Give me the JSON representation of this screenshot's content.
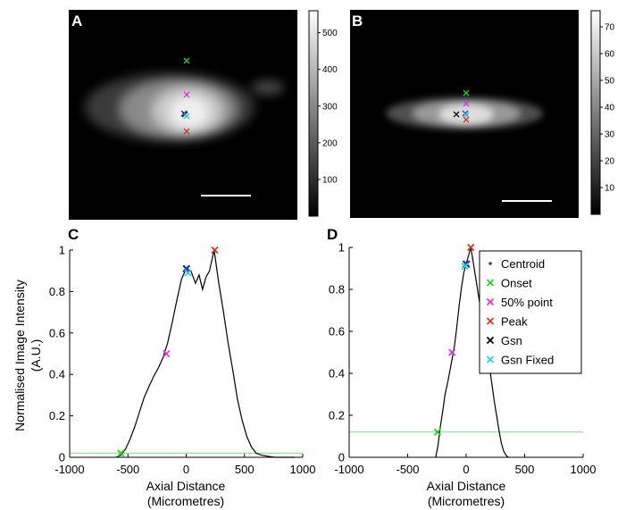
{
  "figure": {
    "panel_labels": [
      "A",
      "B",
      "C",
      "D"
    ]
  },
  "colors": {
    "centroid": "#1f3fd6",
    "onset": "#1fd61f",
    "p50": "#e033e0",
    "peak": "#e0321f",
    "gsn": "#000000",
    "gsn_fixed": "#22d6e0",
    "threshold_line": "#7fe07f",
    "profile_line": "#000000"
  },
  "chart_data": [
    {
      "panel": "A",
      "type": "heatmap",
      "colormap": "gray",
      "colorbar_ticks": [
        "100",
        "200",
        "300",
        "400",
        "500"
      ],
      "clim": [
        0,
        560
      ],
      "markers": [
        "Onset",
        "50% point",
        "Centroid",
        "Gsn",
        "Gsn Fixed",
        "Peak"
      ],
      "scale_bar": true
    },
    {
      "panel": "B",
      "type": "heatmap",
      "colormap": "gray",
      "colorbar_ticks": [
        "10",
        "20",
        "30",
        "40",
        "50",
        "60",
        "70"
      ],
      "clim": [
        0,
        76
      ],
      "markers": [
        "Onset",
        "50% point",
        "Centroid",
        "Gsn",
        "Gsn Fixed",
        "Peak"
      ],
      "scale_bar": true
    },
    {
      "panel": "C",
      "type": "line",
      "xlabel": [
        "Axial Distance",
        "(Micrometres)"
      ],
      "ylabel": [
        "Normalised Image Intensity",
        "(A.U.)"
      ],
      "xlim": [
        -1000,
        1000
      ],
      "ylim": [
        0,
        1
      ],
      "xticks": [
        "-1000",
        "-500",
        "0",
        "500",
        "1000"
      ],
      "yticks": [
        "0",
        "0.2",
        "0.4",
        "0.6",
        "0.8",
        "1"
      ],
      "series": [
        {
          "x": [
            -600,
            -560,
            -520,
            -480,
            -440,
            -400,
            -360,
            -320,
            -280,
            -240,
            -200,
            -160,
            -120,
            -80,
            -40,
            0,
            40,
            80,
            110,
            140,
            170,
            200,
            240,
            280,
            320,
            360,
            400,
            440,
            480,
            520,
            560,
            600,
            650,
            700,
            760,
            820,
            880,
            930
          ],
          "y": [
            0.0,
            0.01,
            0.04,
            0.09,
            0.15,
            0.22,
            0.29,
            0.34,
            0.39,
            0.43,
            0.48,
            0.55,
            0.65,
            0.76,
            0.86,
            0.91,
            0.9,
            0.84,
            0.88,
            0.81,
            0.87,
            0.9,
            1.0,
            0.84,
            0.7,
            0.55,
            0.42,
            0.28,
            0.18,
            0.1,
            0.05,
            0.02,
            0.01,
            0.005,
            0.0,
            0.0,
            0.0,
            0.0
          ]
        }
      ],
      "threshold_y": 0.02,
      "markers": [
        {
          "name": "Onset",
          "x": -560,
          "y": 0.02
        },
        {
          "name": "50% point",
          "x": -170,
          "y": 0.5
        },
        {
          "name": "Gsn",
          "x": 0,
          "y": 0.91
        },
        {
          "name": "Centroid",
          "x": 5,
          "y": 0.91
        },
        {
          "name": "Gsn Fixed",
          "x": 15,
          "y": 0.89
        },
        {
          "name": "Peak",
          "x": 245,
          "y": 1.0
        }
      ]
    },
    {
      "panel": "D",
      "type": "line",
      "xlabel": [
        "Axial Distance",
        "(Micrometres)"
      ],
      "xlim": [
        -1000,
        1000
      ],
      "ylim": [
        0,
        1
      ],
      "xticks": [
        "-1000",
        "-500",
        "0",
        "500",
        "1000"
      ],
      "yticks": [
        "0",
        "0.2",
        "0.4",
        "0.6",
        "0.8",
        "1"
      ],
      "series": [
        {
          "x": [
            -260,
            -240,
            -220,
            -200,
            -180,
            -160,
            -140,
            -120,
            -100,
            -80,
            -60,
            -40,
            -20,
            0,
            20,
            40,
            60,
            80,
            100,
            120,
            140,
            160,
            180,
            200,
            220,
            240,
            260,
            280,
            300,
            320,
            340,
            360
          ],
          "y": [
            0.0,
            0.06,
            0.15,
            0.22,
            0.3,
            0.35,
            0.41,
            0.47,
            0.53,
            0.62,
            0.72,
            0.81,
            0.88,
            0.92,
            0.96,
            1.0,
            0.93,
            0.86,
            0.79,
            0.72,
            0.66,
            0.58,
            0.5,
            0.43,
            0.35,
            0.27,
            0.2,
            0.13,
            0.07,
            0.03,
            0.01,
            0.0
          ]
        }
      ],
      "threshold_y": 0.12,
      "markers": [
        {
          "name": "Onset",
          "x": -245,
          "y": 0.12
        },
        {
          "name": "50% point",
          "x": -120,
          "y": 0.5
        },
        {
          "name": "Gsn",
          "x": 0,
          "y": 0.92
        },
        {
          "name": "Centroid",
          "x": 5,
          "y": 0.92
        },
        {
          "name": "Gsn Fixed",
          "x": -10,
          "y": 0.91
        },
        {
          "name": "Peak",
          "x": 40,
          "y": 1.0
        }
      ],
      "legend": {
        "position": "top-right",
        "entries": [
          {
            "label": "Centroid",
            "key": "centroid",
            "symbol": "dot"
          },
          {
            "label": "Onset",
            "key": "onset",
            "symbol": "x"
          },
          {
            "label": "50% point",
            "key": "p50",
            "symbol": "x"
          },
          {
            "label": "Peak",
            "key": "peak",
            "symbol": "x"
          },
          {
            "label": "Gsn",
            "key": "gsn",
            "symbol": "x"
          },
          {
            "label": "Gsn Fixed",
            "key": "gsn_fixed",
            "symbol": "x"
          }
        ]
      }
    }
  ]
}
